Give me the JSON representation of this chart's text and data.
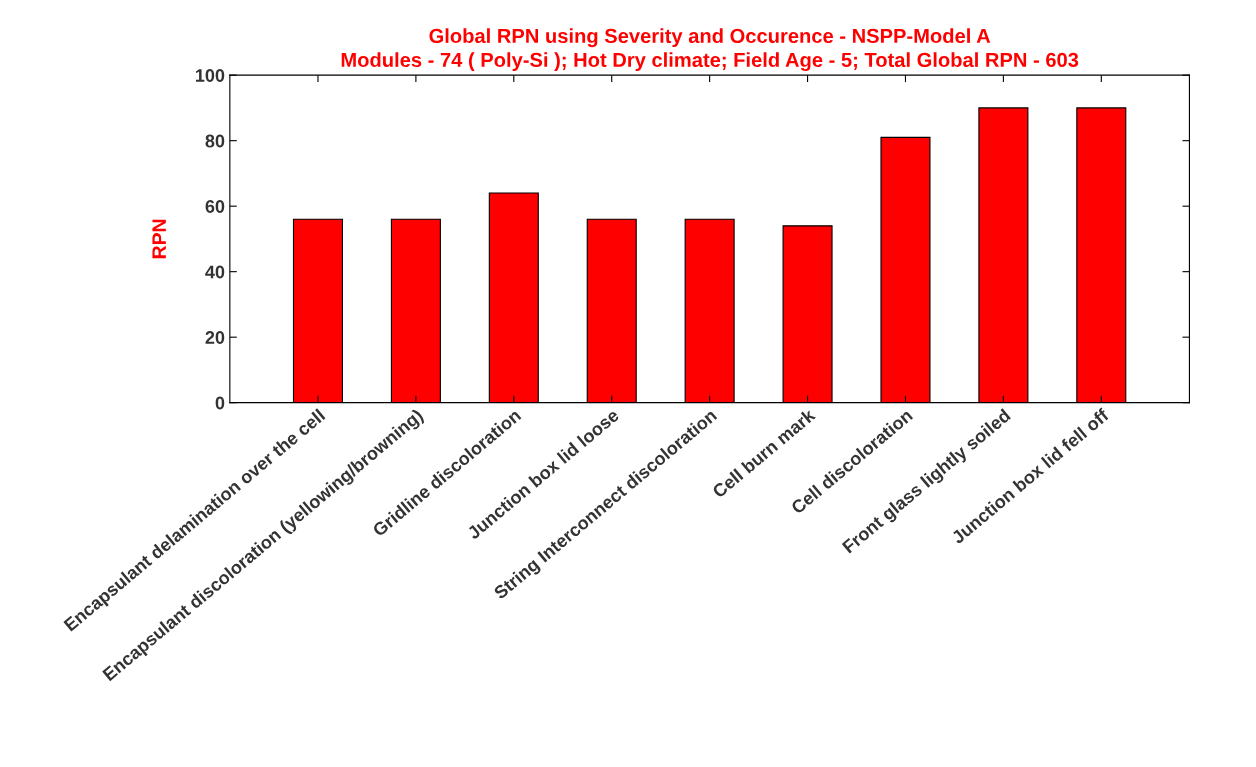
{
  "chart_data": {
    "type": "bar",
    "title": "Global RPN using Severity and Occurence - NSPP-Model A\nModules - 74 ( Poly-Si ); Hot Dry climate; Field Age - 5; Total Global RPN - 603",
    "ylabel": "RPN",
    "categories": [
      "Encapsulant delamination over the cell",
      "Encapsulant discoloration (yellowing/browning)",
      "Gridline discoloration",
      "Junction box lid loose",
      "String Interconnect discoloration",
      "Cell burn mark",
      "Cell discoloration",
      "Front glass lightly soiled",
      "Junction box lid fell off"
    ],
    "values": [
      56,
      56,
      64,
      56,
      56,
      54,
      81,
      90,
      90
    ],
    "color": "#ff0000",
    "ylim": [
      0,
      100
    ],
    "yticks": [
      0,
      20,
      40,
      60,
      80,
      100
    ],
    "grid": false,
    "legend": false
  }
}
